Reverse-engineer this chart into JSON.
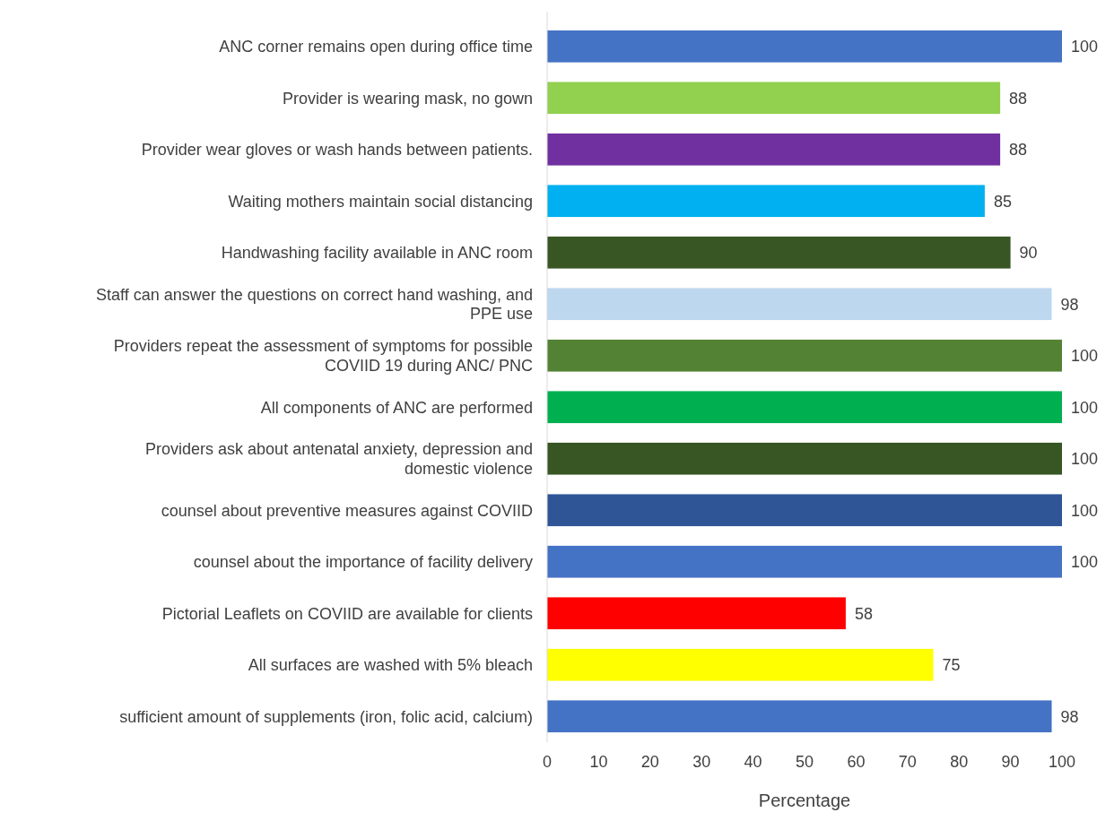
{
  "chart_data": {
    "type": "bar",
    "orientation": "horizontal",
    "xlabel": "Percentage",
    "categories": [
      "ANC corner remains open during office time",
      "Provider is wearing mask, no gown",
      "Provider wear gloves or wash hands between patients.",
      "Waiting mothers maintain social distancing",
      "Handwashing facility  available in ANC room",
      "Staff can answer the questions on correct hand washing, and PPE use",
      "Providers repeat the assessment of symptoms for possible COVIID 19 during ANC/ PNC",
      "All components of ANC are performed",
      "Providers ask about antenatal anxiety, depression and domestic violence",
      "counsel about preventive measures against COVIID",
      "counsel about the importance of facility delivery",
      "Pictorial Leaflets on COVIID are available for clients",
      "All surfaces are washed with 5% bleach",
      "sufficient amount of supplements (iron, folic acid, calcium)"
    ],
    "values": [
      100,
      88,
      88,
      85,
      90,
      98,
      100,
      100,
      100,
      100,
      100,
      58,
      75,
      98
    ],
    "colors": [
      "#4472c4",
      "#92d050",
      "#7030a0",
      "#00b0f0",
      "#375623",
      "#bdd7ee",
      "#548235",
      "#00b050",
      "#375623",
      "#2f5597",
      "#4472c4",
      "#ff0000",
      "#ffff00",
      "#4472c4"
    ],
    "xlim": [
      0,
      100
    ],
    "xticks": [
      0,
      10,
      20,
      30,
      40,
      50,
      60,
      70,
      80,
      90,
      100
    ],
    "data_labels": true,
    "grid": false
  }
}
